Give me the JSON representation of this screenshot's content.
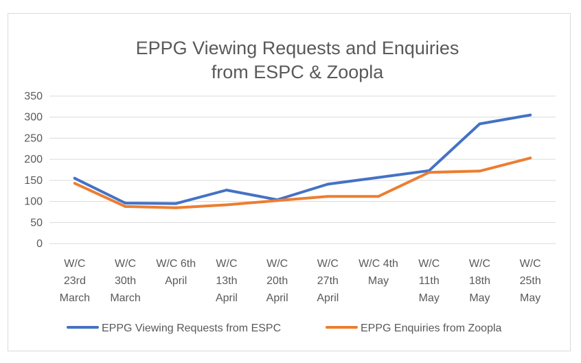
{
  "chart_data": {
    "type": "line",
    "title_lines": [
      "EPPG Viewing Requests and Enquiries",
      "from ESPC & Zoopla"
    ],
    "categories": [
      [
        "W/C",
        "23rd",
        "March"
      ],
      [
        "W/C",
        "30th",
        "March"
      ],
      [
        "W/C 6th",
        "April"
      ],
      [
        "W/C",
        "13th",
        "April"
      ],
      [
        "W/C",
        "20th",
        "April"
      ],
      [
        "W/C",
        "27th",
        "April"
      ],
      [
        "W/C 4th",
        "May"
      ],
      [
        "W/C",
        "11th",
        "May"
      ],
      [
        "W/C",
        "18th",
        "May"
      ],
      [
        "W/C",
        "25th",
        "May"
      ]
    ],
    "ylim": [
      0,
      350
    ],
    "yticks": [
      0,
      50,
      100,
      150,
      200,
      250,
      300,
      350
    ],
    "grid": true,
    "legend_position": "bottom",
    "series": [
      {
        "name": "EPPG Viewing Requests from ESPC",
        "color": "#4472C4",
        "values": [
          155,
          96,
          95,
          127,
          104,
          141,
          157,
          173,
          284,
          305
        ]
      },
      {
        "name": "EPPG Enquiries from Zoopla",
        "color": "#ED7D31",
        "values": [
          143,
          88,
          85,
          92,
          102,
          112,
          112,
          169,
          172,
          203
        ]
      }
    ]
  }
}
